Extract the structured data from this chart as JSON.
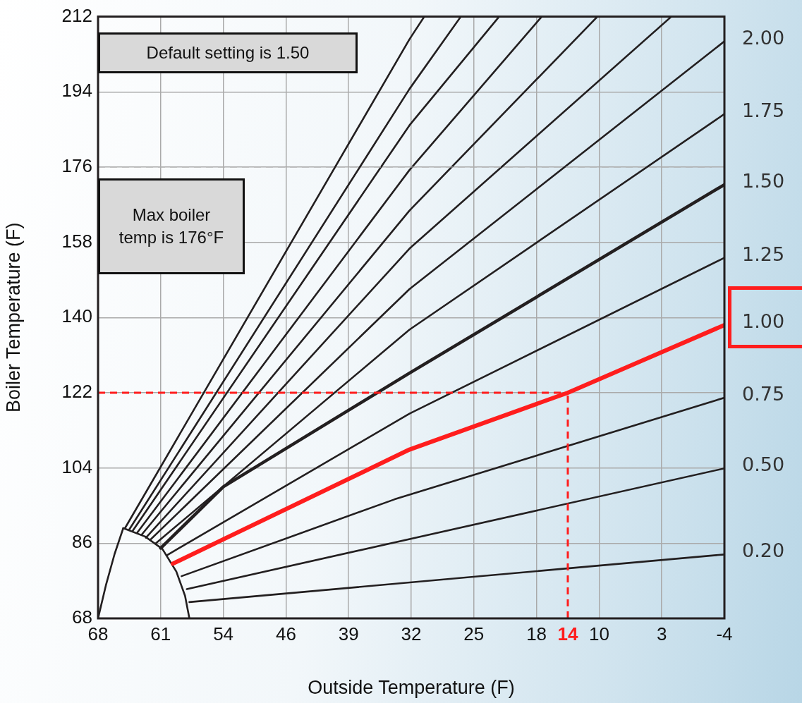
{
  "chart_data": {
    "type": "line",
    "xlabel": "Outside Temperature (F)",
    "ylabel": "Boiler Temperature (F)",
    "xlim": [
      68,
      -4
    ],
    "xticks": [
      {
        "value": 68,
        "label": "68"
      },
      {
        "value": 60.8,
        "label": "61"
      },
      {
        "value": 53.6,
        "label": "54"
      },
      {
        "value": 46.4,
        "label": "46"
      },
      {
        "value": 39.2,
        "label": "39"
      },
      {
        "value": 32,
        "label": "32"
      },
      {
        "value": 24.8,
        "label": "25"
      },
      {
        "value": 17.6,
        "label": "18"
      },
      {
        "value": 10.4,
        "label": "10"
      },
      {
        "value": 3.2,
        "label": "3"
      },
      {
        "value": -4,
        "label": "-4"
      }
    ],
    "ylim": [
      68,
      212
    ],
    "yticks": [
      68,
      86,
      104,
      122,
      140,
      158,
      176,
      194,
      212
    ],
    "grid": true,
    "legend": false,
    "marker": "none",
    "line_style": "solid",
    "series": [
      {
        "name": "0.20",
        "color": "#231f20",
        "x": [
          57.5,
          -4
        ],
        "values": [
          71.9,
          83.3
        ]
      },
      {
        "name": "0.50",
        "color": "#231f20",
        "x": [
          57.8,
          -4
        ],
        "values": [
          75.0,
          103.9
        ]
      },
      {
        "name": "0.75",
        "color": "#231f20",
        "x": [
          58.4,
          33.9,
          -4
        ],
        "values": [
          78.1,
          96.5,
          120.8
        ]
      },
      {
        "name": "1.00",
        "color": "#ff1d1d",
        "x": [
          59.4,
          32.2,
          14,
          -4
        ],
        "values": [
          81.1,
          108.4,
          122,
          138.2
        ]
      },
      {
        "name": "1.25",
        "color": "#231f20",
        "x": [
          60.1,
          32.2,
          -4
        ],
        "values": [
          83.1,
          117.0,
          154.3
        ]
      },
      {
        "name": "1.50",
        "color": "#231f20",
        "x": [
          60.8,
          53.6,
          32.2,
          -4
        ],
        "values": [
          84.8,
          99.5,
          126.7,
          171.8
        ]
      },
      {
        "name": "1.75",
        "color": "#231f20",
        "x": [
          61.4,
          32.2,
          -4
        ],
        "values": [
          85.9,
          137.1,
          188.7
        ]
      },
      {
        "name": "2.00",
        "color": "#231f20",
        "x": [
          62.0,
          32.2,
          -4
        ],
        "values": [
          86.8,
          146.8,
          206.1
        ]
      },
      {
        "color": "#231f20",
        "x": [
          62.5,
          32.2,
          2.1
        ],
        "values": [
          87.3,
          156.5,
          212
        ]
      },
      {
        "color": "#231f20",
        "x": [
          63.0,
          32.2,
          10.6
        ],
        "values": [
          88.0,
          165.6,
          212
        ]
      },
      {
        "color": "#231f20",
        "x": [
          63.5,
          32.2,
          17.0
        ],
        "values": [
          88.5,
          175.3,
          212
        ]
      },
      {
        "color": "#231f20",
        "x": [
          64.0,
          32.2,
          21.9
        ],
        "values": [
          89.0,
          186.0,
          212
        ]
      },
      {
        "color": "#231f20",
        "x": [
          64.4,
          32.2,
          26.3
        ],
        "values": [
          89.3,
          194.7,
          212
        ]
      },
      {
        "color": "#231f20",
        "x": [
          64.9,
          32.2,
          30.5
        ],
        "values": [
          89.6,
          206.6,
          212
        ]
      },
      {
        "color": "#231f20",
        "x": [
          68,
          67.1,
          66.1,
          65.1
        ],
        "values": [
          68,
          75.9,
          83.4,
          89.6
        ]
      },
      {
        "color": "#231f20",
        "x": [
          65.1,
          62.6,
          60.6,
          59.0,
          58.0,
          57.5
        ],
        "values": [
          89.6,
          87.6,
          84.6,
          79.2,
          73.4,
          68
        ]
      }
    ],
    "ref_lines": [
      {
        "axis": "x",
        "value": 14,
        "label": "14",
        "color": "#ff1d1d",
        "line_style": "dashed"
      },
      {
        "axis": "y",
        "value": 122,
        "color": "#ff1d1d",
        "line_style": "dashed"
      },
      {
        "axis": "y",
        "value": 176,
        "color": "#b0b0b0",
        "line_style": "dashed"
      }
    ],
    "annotations": [
      "Default setting is 1.50",
      "Max boiler temp is 176°F"
    ]
  }
}
